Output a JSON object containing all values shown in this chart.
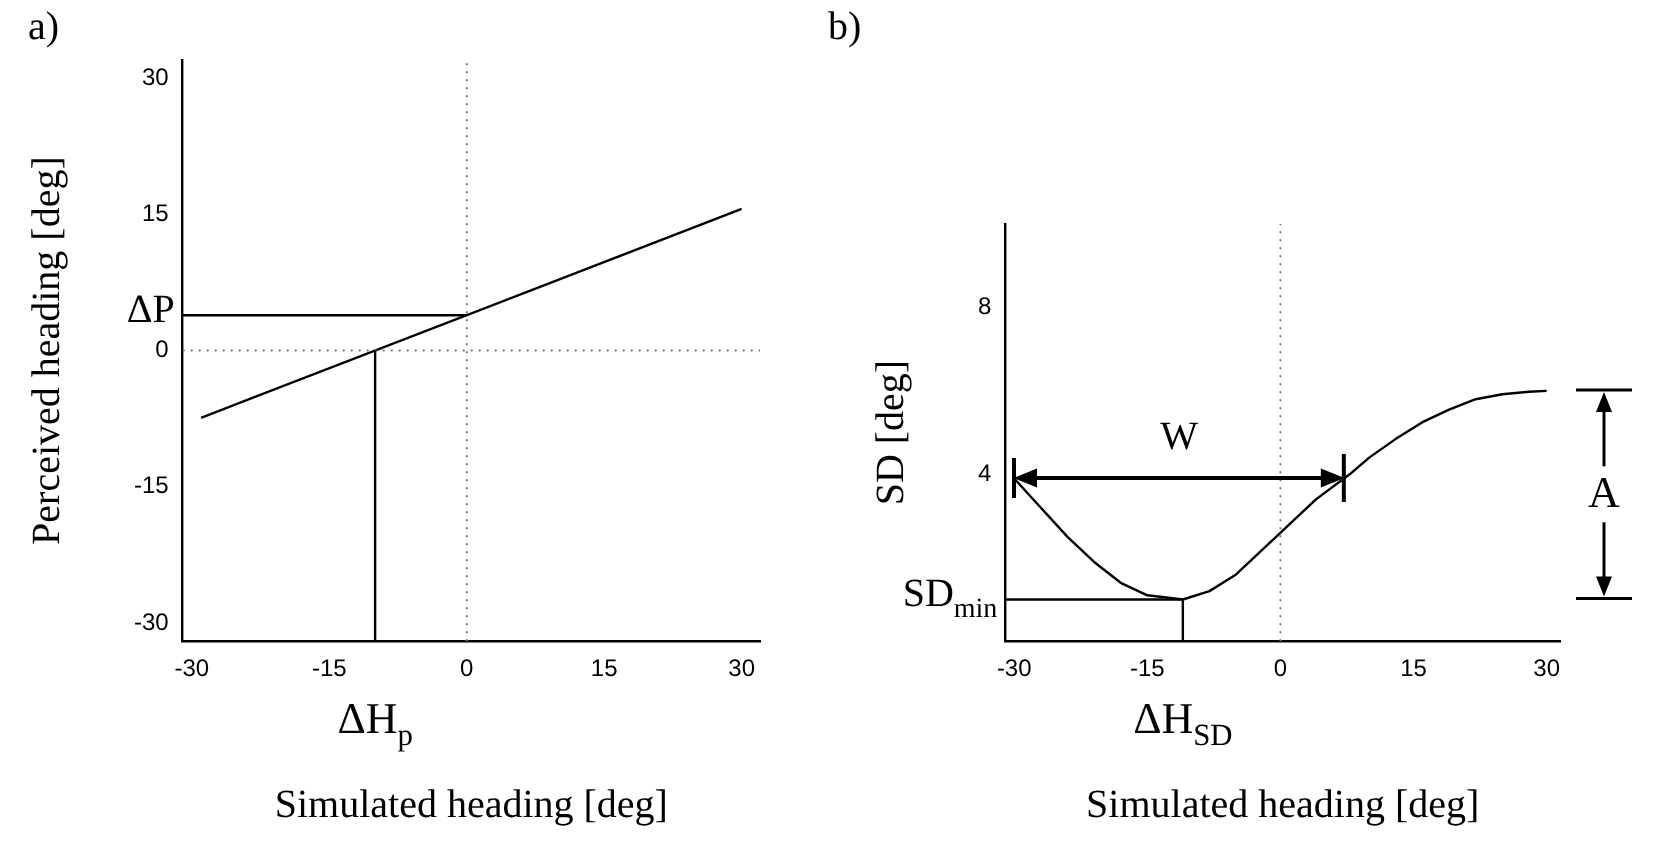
{
  "chart_data": [
    {
      "type": "line",
      "title": "a)",
      "xlabel": "Simulated heading [deg]",
      "ylabel": "Perceived heading [deg]",
      "xlim": [
        -31,
        32
      ],
      "ylim": [
        -32,
        32
      ],
      "xticks": [
        -30,
        -15,
        0,
        15,
        30
      ],
      "yticks": [
        -30,
        -15,
        0,
        15,
        30
      ],
      "grid": false,
      "legend": false,
      "marker": "none",
      "line_style": "solid",
      "series": [
        {
          "color": "#000000",
          "x": [
            -29,
            30
          ],
          "values": [
            -7.4,
            15.6
          ]
        }
      ],
      "ref_lines": [
        {
          "axis": "x",
          "value": 0,
          "line_style": "dotted"
        },
        {
          "axis": "y",
          "value": 0,
          "line_style": "dotted"
        },
        {
          "axis": "y",
          "value": 3.9,
          "label": "ΔP",
          "line_style": "solid"
        },
        {
          "axis": "x",
          "value": -10,
          "label": "ΔH$_{p}$",
          "line_style": "solid"
        }
      ]
    },
    {
      "type": "line",
      "title": "b)",
      "xlabel": "Simulated heading [deg]",
      "ylabel": "SD [deg]",
      "xlim": [
        -31,
        31.5
      ],
      "ylim": [
        0,
        10
      ],
      "xticks": [
        -30,
        -15,
        0,
        15,
        30
      ],
      "yticks": [
        4,
        8
      ],
      "grid": false,
      "legend": false,
      "marker": "none",
      "line_style": "solid",
      "series": [
        {
          "color": "#000000",
          "x": [
            -30,
            -27,
            -24,
            -21,
            -18,
            -15,
            -11,
            -8,
            -5,
            -2,
            1,
            4,
            7.8,
            10,
            13,
            16,
            19,
            22,
            25,
            28,
            30
          ],
          "values": [
            3.9,
            3.2,
            2.5,
            1.9,
            1.4,
            1.1,
            1.0,
            1.2,
            1.6,
            2.2,
            2.8,
            3.4,
            4.0,
            4.4,
            4.85,
            5.25,
            5.55,
            5.8,
            5.92,
            5.98,
            6.0
          ]
        }
      ],
      "ref_lines": [
        {
          "axis": "x",
          "value": 0,
          "line_style": "dotted"
        },
        {
          "axis": "y",
          "value": 1.0,
          "label": "SD$_{min}$",
          "line_style": "solid"
        },
        {
          "axis": "x",
          "value": -11,
          "label": "ΔH$_{SD}$",
          "line_style": "solid"
        }
      ],
      "annotations": [
        "W",
        "A"
      ]
    }
  ]
}
